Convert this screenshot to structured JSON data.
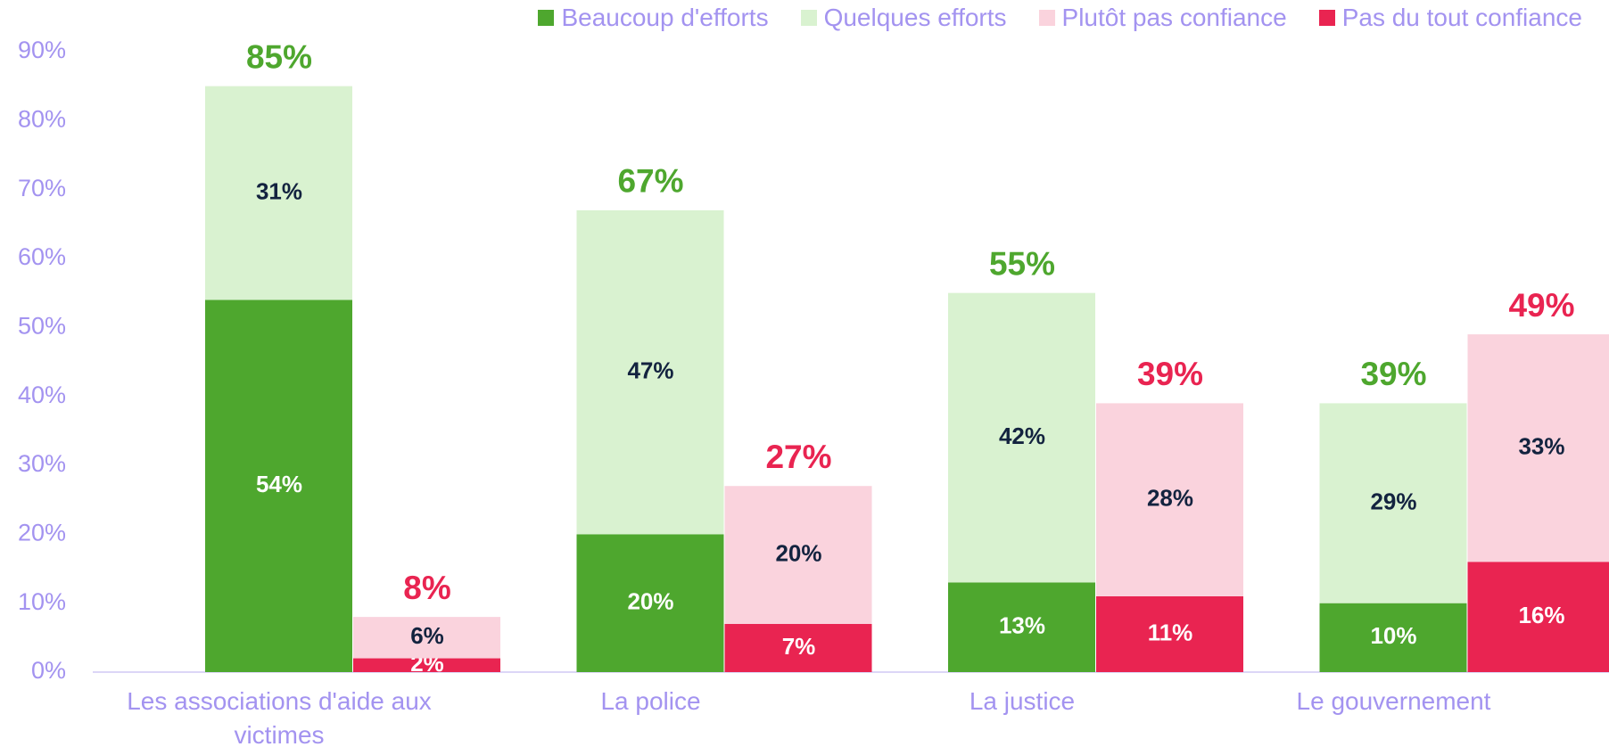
{
  "chart_data": {
    "type": "grouped-stacked-bar",
    "categories": [
      "Les associations d'aide aux victimes",
      "La police",
      "La justice",
      "Le gouvernement"
    ],
    "series": [
      {
        "name": "Beaucoup d'efforts",
        "color": "#4ea72e",
        "label_color": "#ffffff",
        "values": [
          54,
          20,
          13,
          10
        ],
        "value_labels": [
          "54%",
          "20%",
          "13%",
          "10%"
        ]
      },
      {
        "name": "Quelques efforts",
        "color": "#d9f2d0",
        "label_color": "#13233f",
        "values": [
          31,
          47,
          42,
          29
        ],
        "value_labels": [
          "31%",
          "47%",
          "42%",
          "29%"
        ]
      },
      {
        "name": "Plutôt pas confiance",
        "color": "#fad3dd",
        "label_color": "#13233f",
        "values": [
          6,
          20,
          28,
          33
        ],
        "value_labels": [
          "6%",
          "20%",
          "28%",
          "33%"
        ]
      },
      {
        "name": "Pas du tout confiance",
        "color": "#e92451",
        "label_color": "#ffffff",
        "values": [
          2,
          7,
          11,
          16
        ],
        "value_labels": [
          "2%",
          "7%",
          "11%",
          "16%"
        ]
      }
    ],
    "stacks": [
      {
        "series": [
          0,
          1
        ],
        "color": "#4ea72e",
        "totals": [
          85,
          67,
          55,
          39
        ],
        "total_labels": [
          "85%",
          "67%",
          "55%",
          "39%"
        ]
      },
      {
        "series": [
          3,
          2
        ],
        "color": "#e92451",
        "totals": [
          8,
          27,
          39,
          49
        ],
        "total_labels": [
          "8%",
          "27%",
          "39%",
          "49%"
        ]
      }
    ],
    "ylim": [
      0,
      90
    ],
    "yticks": [
      {
        "value": 0,
        "label": "0%"
      },
      {
        "value": 10,
        "label": "10%"
      },
      {
        "value": 20,
        "label": "20%"
      },
      {
        "value": 30,
        "label": "30%"
      },
      {
        "value": 40,
        "label": "40%"
      },
      {
        "value": 50,
        "label": "50%"
      },
      {
        "value": 60,
        "label": "60%"
      },
      {
        "value": 70,
        "label": "70%"
      },
      {
        "value": 80,
        "label": "80%"
      },
      {
        "value": 90,
        "label": "90%"
      }
    ],
    "legend": "top-right"
  }
}
